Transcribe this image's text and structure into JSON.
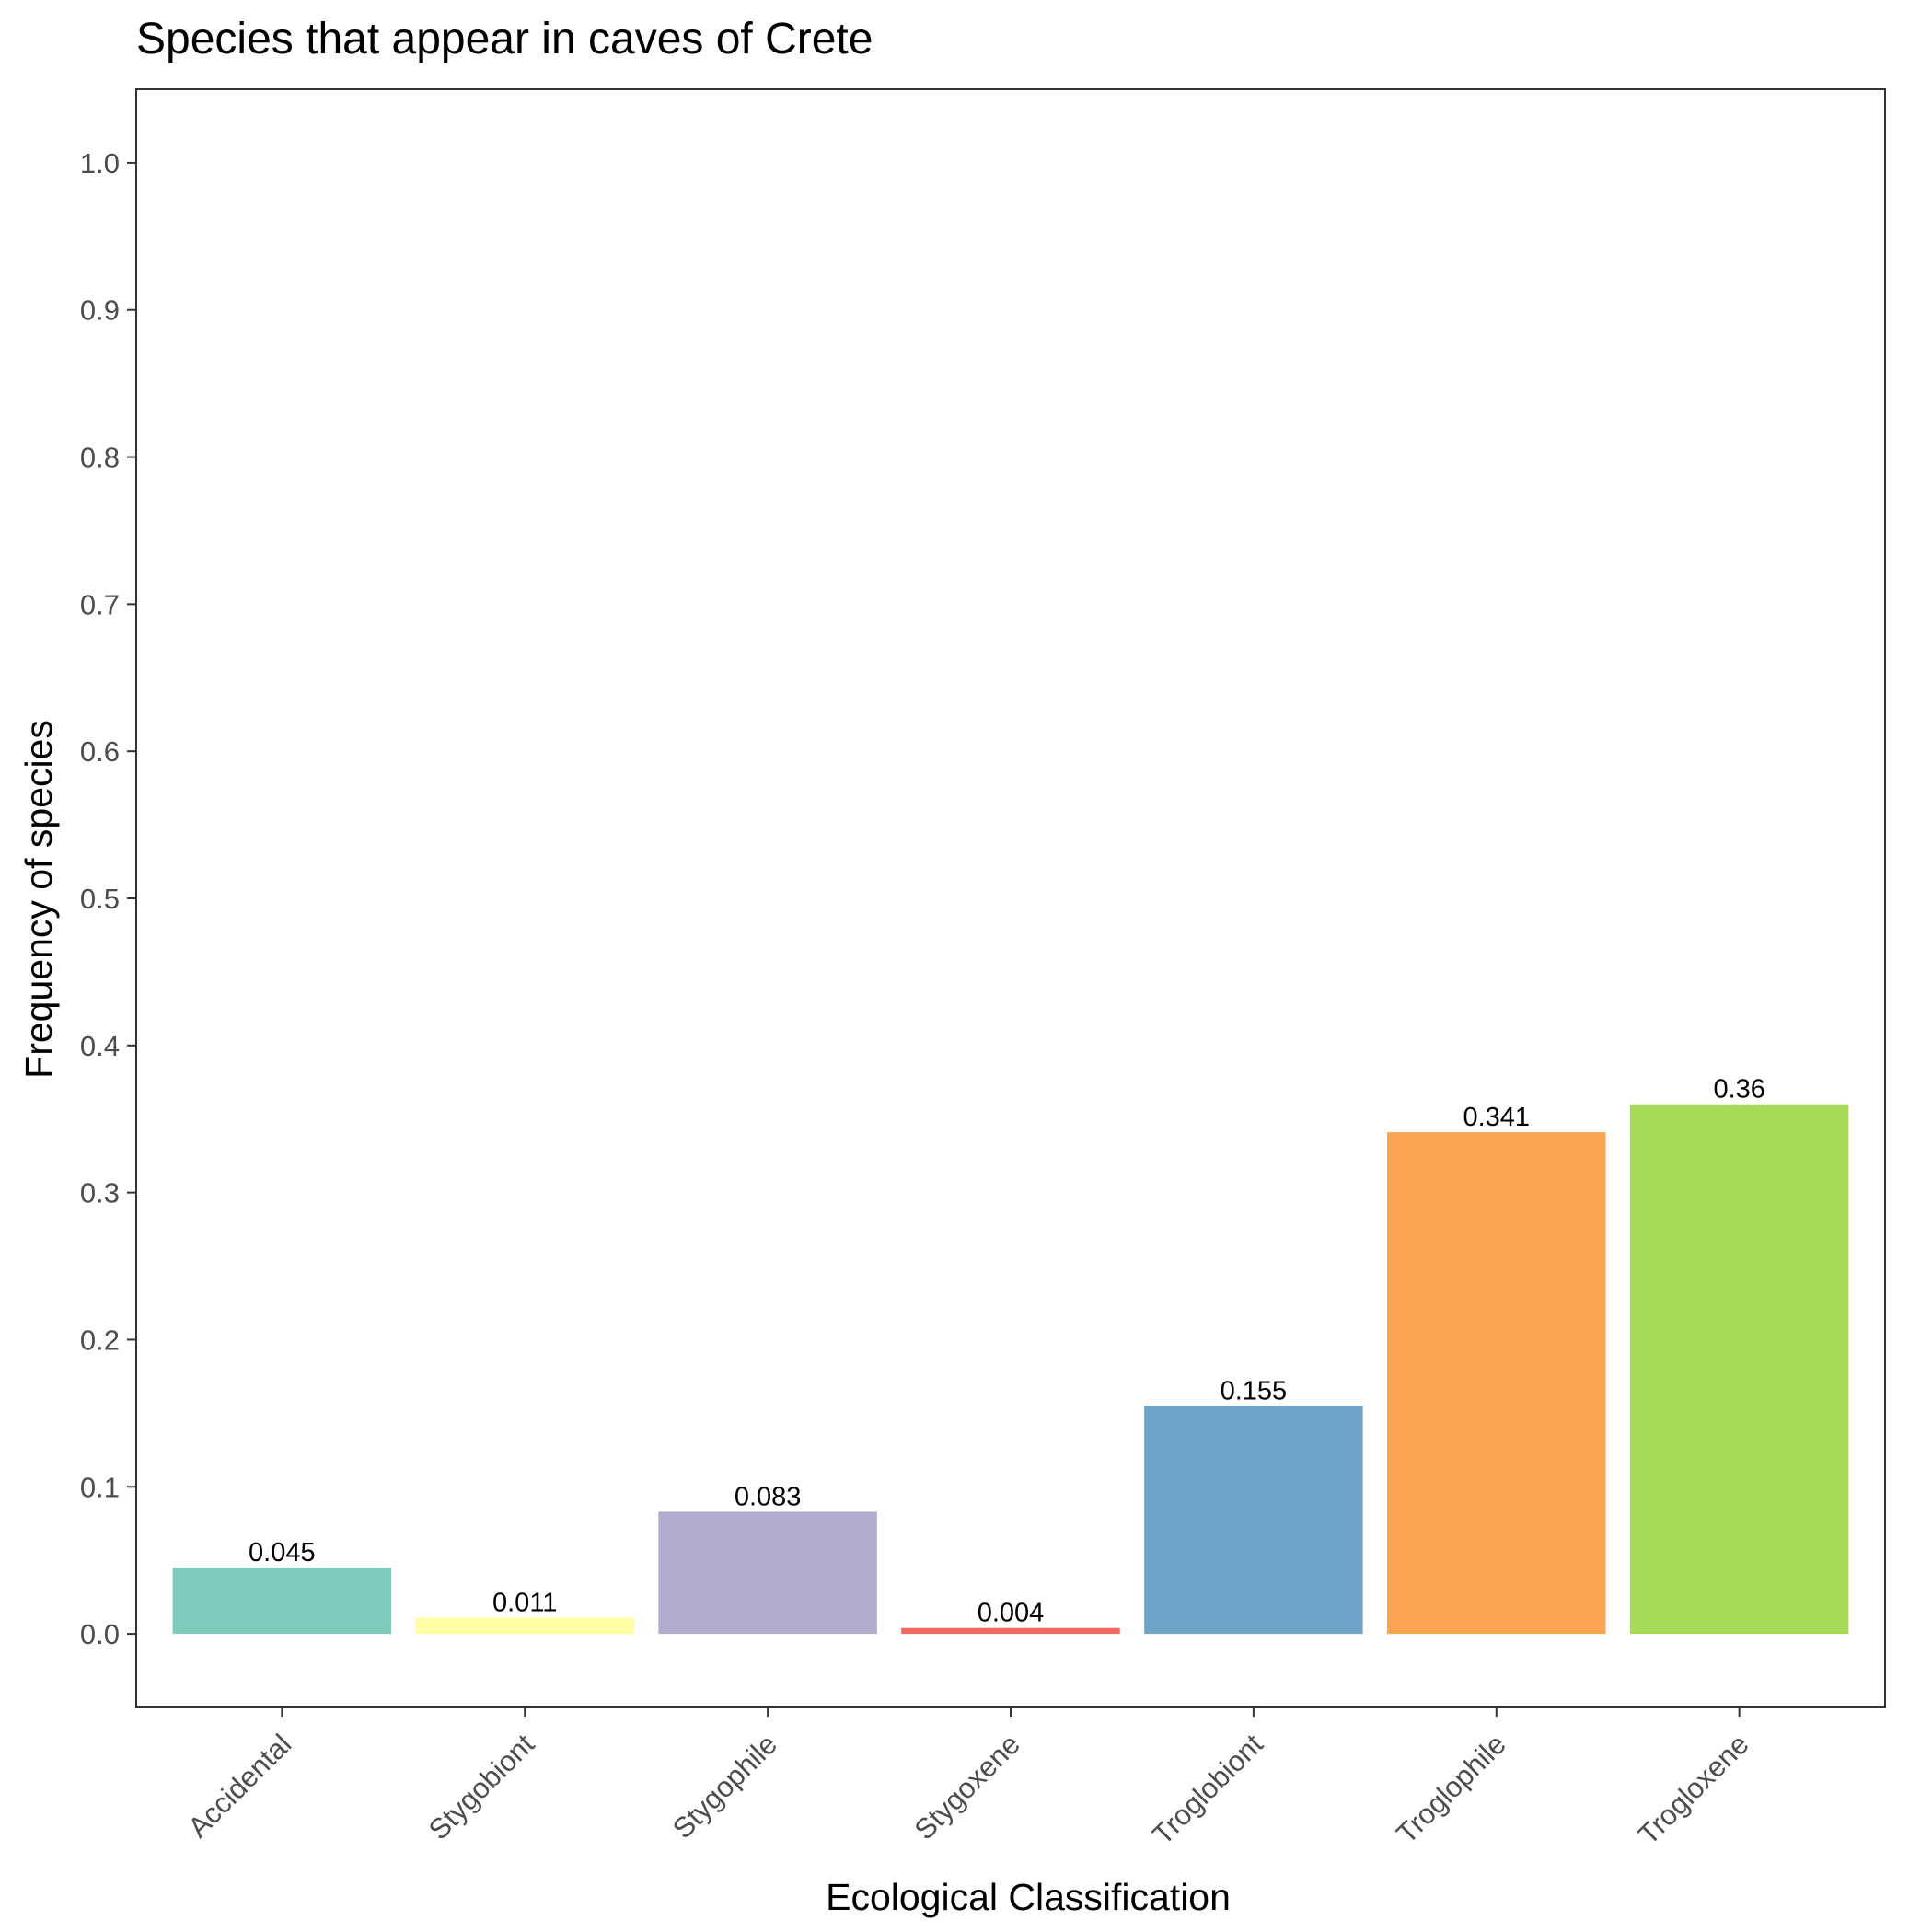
{
  "chart_data": {
    "type": "bar",
    "title": "Species that appear in caves of Crete",
    "xlabel": "Ecological Classification",
    "ylabel": "Frequency of species",
    "categories": [
      "Accidental",
      "Stygobiont",
      "Stygophile",
      "Stygoxene",
      "Troglobiont",
      "Troglophile",
      "Trogloxene"
    ],
    "values": [
      0.045,
      0.011,
      0.083,
      0.004,
      0.155,
      0.341,
      0.36
    ],
    "data_labels": [
      "0.045",
      "0.011",
      "0.083",
      "0.004",
      "0.155",
      "0.341",
      "0.36"
    ],
    "colors": [
      "#7fcbbb",
      "#fefea4",
      "#b1acce",
      "#ef6b5f",
      "#6fa3c9",
      "#f9a551",
      "#a6da57"
    ],
    "ylim": [
      -0.05,
      1.05
    ],
    "yticks": [
      0.0,
      0.1,
      0.2,
      0.3,
      0.4,
      0.5,
      0.6,
      0.7,
      0.8,
      0.9,
      1.0
    ],
    "ytick_labels": [
      "0.0",
      "0.1",
      "0.2",
      "0.3",
      "0.4",
      "0.5",
      "0.6",
      "0.7",
      "0.8",
      "0.9",
      "1.0"
    ],
    "grid": false,
    "legend": "none"
  }
}
